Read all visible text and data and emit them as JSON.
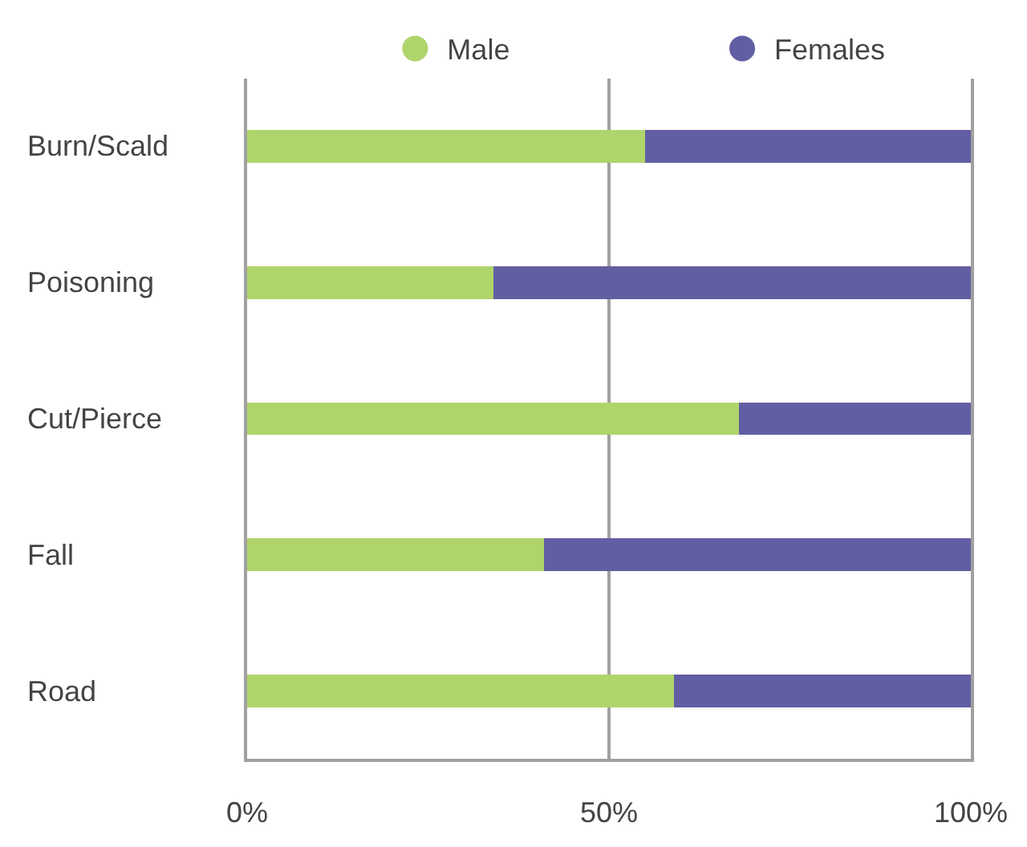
{
  "chart_data": {
    "type": "bar",
    "orientation": "horizontal",
    "stacked": true,
    "categories": [
      "Burn/Scald",
      "Poisoning",
      "Cut/Pierce",
      "Fall",
      "Road"
    ],
    "series": [
      {
        "name": "Male",
        "color": "#b0d46c",
        "values": [
          55,
          34,
          68,
          41,
          59
        ]
      },
      {
        "name": "Females",
        "color": "#625ea3",
        "values": [
          45,
          66,
          32,
          59,
          41
        ]
      }
    ],
    "xlim": [
      0,
      100
    ],
    "xticks": [
      {
        "value": 0,
        "label": "0%"
      },
      {
        "value": 50,
        "label": "50%"
      },
      {
        "value": 100,
        "label": "100%"
      }
    ],
    "grid": "x",
    "legend": "top"
  }
}
